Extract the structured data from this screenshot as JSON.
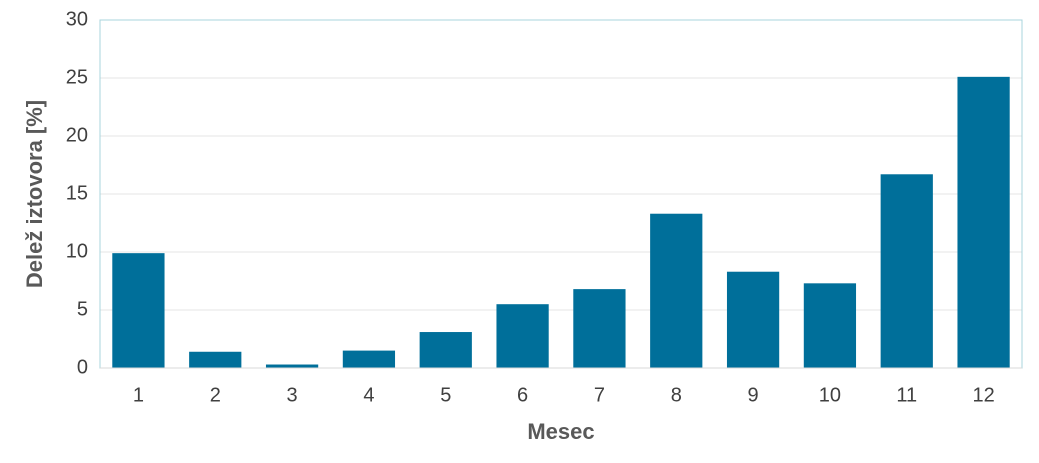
{
  "chart_data": {
    "type": "bar",
    "xlabel": "Mesec",
    "ylabel": "Delež iztovora [%]",
    "categories": [
      "1",
      "2",
      "3",
      "4",
      "5",
      "6",
      "7",
      "8",
      "9",
      "10",
      "11",
      "12"
    ],
    "values": [
      9.9,
      1.4,
      0.3,
      1.5,
      3.1,
      5.5,
      6.8,
      13.3,
      8.3,
      7.3,
      16.7,
      25.1
    ],
    "color": "#006f9a",
    "ylim": [
      0,
      30
    ],
    "yticks": [
      0,
      5,
      10,
      15,
      20,
      25,
      30
    ],
    "grid": true
  }
}
